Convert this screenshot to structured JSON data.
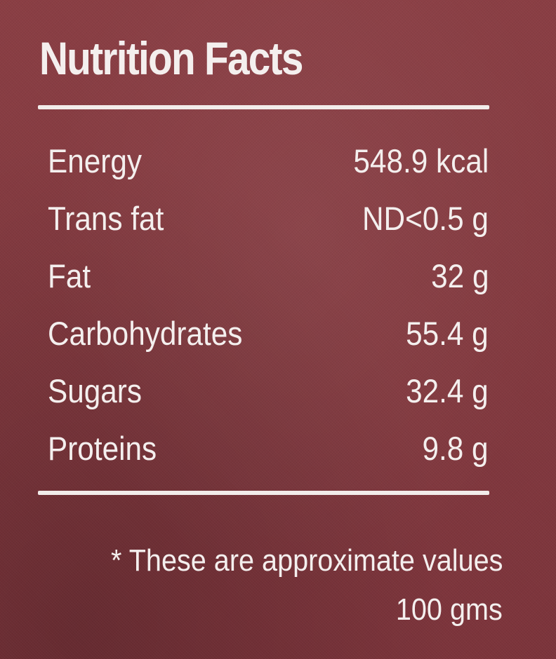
{
  "title": "Nutrition Facts",
  "nutrients": [
    {
      "label": "Energy",
      "value": "548.9 kcal"
    },
    {
      "label": "Trans fat",
      "value": "ND<0.5 g"
    },
    {
      "label": "Fat",
      "value": "32 g"
    },
    {
      "label": "Carbohydrates",
      "value": "55.4 g"
    },
    {
      "label": "Sugars",
      "value": "32.4 g"
    },
    {
      "label": "Proteins",
      "value": "9.8 g"
    }
  ],
  "footnote": "* These are approximate values",
  "serving": "100 gms",
  "colors": {
    "background": "#843a40",
    "text": "#f4efee"
  }
}
